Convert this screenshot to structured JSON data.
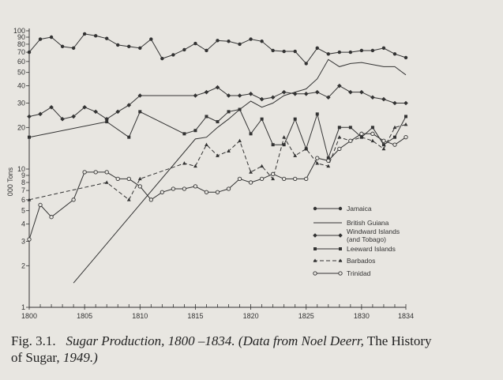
{
  "caption": {
    "fig_label": "Fig. 3.1.",
    "part1": "Sugar Production, 1800 –1834. (Data from Noel Deerr,",
    "part2": " The History",
    "part3": "of Sugar,",
    "part4": " 1949.)"
  },
  "chart_data": {
    "type": "line",
    "title": "",
    "xlabel": "",
    "ylabel": "000 Tons",
    "yscale": "log",
    "ylim": [
      1,
      100
    ],
    "xlim": [
      1800,
      1834
    ],
    "x_ticks": [
      1800,
      1805,
      1810,
      1815,
      1820,
      1825,
      1830,
      1834
    ],
    "y_ticks": [
      {
        "value": 1,
        "label": "1"
      },
      {
        "value": 2,
        "label": "2"
      },
      {
        "value": 3,
        "label": "3"
      },
      {
        "value": 4,
        "label": "4"
      },
      {
        "value": 5,
        "label": "5"
      },
      {
        "value": 6,
        "label": "6"
      },
      {
        "value": 7,
        "label": "7"
      },
      {
        "value": 8,
        "label": "8"
      },
      {
        "value": 9,
        "label": "9"
      },
      {
        "value": 10,
        "label": "10"
      },
      {
        "value": 20,
        "label": "20"
      },
      {
        "value": 30,
        "label": "30"
      },
      {
        "value": 40,
        "label": "40"
      },
      {
        "value": 50,
        "label": "50"
      },
      {
        "value": 60,
        "label": "60"
      },
      {
        "value": 70,
        "label": "70"
      },
      {
        "value": 80,
        "label": "80"
      },
      {
        "value": 90,
        "label": "90"
      },
      {
        "value": 100,
        "label": "100"
      }
    ],
    "grid": false,
    "legend_position": "right",
    "series": [
      {
        "name": "Jamaica",
        "marker": "dot",
        "dash": "solid",
        "color": "#333333",
        "x": [
          1800,
          1801,
          1802,
          1803,
          1804,
          1805,
          1806,
          1807,
          1808,
          1809,
          1810,
          1811,
          1812,
          1813,
          1814,
          1815,
          1816,
          1817,
          1818,
          1819,
          1820,
          1821,
          1822,
          1823,
          1824,
          1825,
          1826,
          1827,
          1828,
          1829,
          1830,
          1831,
          1832,
          1833,
          1834
        ],
        "y": [
          70,
          87,
          90,
          77,
          75,
          95,
          92,
          88,
          79,
          77,
          75,
          87,
          63,
          67,
          73,
          81,
          72,
          85,
          84,
          80,
          87,
          84,
          72,
          71,
          71,
          58,
          75,
          68,
          70,
          70,
          72,
          72,
          75,
          68,
          64
        ]
      },
      {
        "name": "British Guiana",
        "marker": "none",
        "dash": "solid",
        "color": "#333333",
        "x": [
          1804,
          1815,
          1816,
          1817,
          1818,
          1819,
          1820,
          1821,
          1822,
          1823,
          1824,
          1825,
          1826,
          1827,
          1828,
          1829,
          1830,
          1831,
          1832,
          1833,
          1834
        ],
        "y": [
          1.5,
          16.5,
          17,
          20,
          23,
          27,
          31,
          28,
          30,
          34,
          36,
          38,
          45,
          62,
          55,
          58,
          59,
          57,
          55,
          55,
          48
        ]
      },
      {
        "name": "Windward Islands (and Tobago)",
        "marker": "diamond",
        "dash": "solid",
        "color": "#333333",
        "x": [
          1800,
          1801,
          1802,
          1803,
          1804,
          1805,
          1806,
          1807,
          1808,
          1809,
          1810,
          1815,
          1816,
          1817,
          1818,
          1819,
          1820,
          1821,
          1822,
          1823,
          1824,
          1825,
          1826,
          1827,
          1828,
          1829,
          1830,
          1831,
          1832,
          1833,
          1834
        ],
        "y": [
          24,
          25,
          28,
          23,
          24,
          28,
          26,
          23,
          26,
          29,
          34,
          34,
          36,
          39,
          34,
          34,
          35,
          32,
          33,
          36,
          35,
          35,
          36,
          33,
          40,
          36,
          36,
          33,
          32,
          30,
          30
        ]
      },
      {
        "name": "Leeward Islands",
        "marker": "square",
        "dash": "solid",
        "color": "#333333",
        "x": [
          1800,
          1807,
          1809,
          1810,
          1814,
          1815,
          1816,
          1817,
          1818,
          1819,
          1820,
          1821,
          1822,
          1823,
          1824,
          1825,
          1826,
          1827,
          1828,
          1829,
          1830,
          1831,
          1832,
          1833,
          1834
        ],
        "y": [
          17,
          22,
          17,
          26,
          18,
          19,
          24,
          22,
          26,
          27,
          18,
          23,
          15,
          15,
          23,
          14,
          25,
          12,
          20,
          20,
          17,
          20,
          15,
          17,
          24
        ]
      },
      {
        "name": "Barbados",
        "marker": "triangle",
        "dash": "dashed",
        "color": "#333333",
        "x": [
          1800,
          1807,
          1809,
          1810,
          1814,
          1815,
          1816,
          1817,
          1818,
          1819,
          1820,
          1821,
          1822,
          1823,
          1824,
          1825,
          1826,
          1827,
          1828,
          1829,
          1830,
          1831,
          1832,
          1833,
          1834
        ],
        "y": [
          6,
          8,
          6,
          8.5,
          11,
          10.5,
          15,
          12.5,
          13.5,
          16,
          9.5,
          10.5,
          8.5,
          17,
          12.5,
          14,
          11,
          10.5,
          17,
          16,
          17,
          16,
          14,
          20,
          21
        ]
      },
      {
        "name": "Trinidad",
        "marker": "circle",
        "dash": "solid",
        "color": "#333333",
        "x": [
          1800,
          1801,
          1802,
          1804,
          1805,
          1806,
          1807,
          1808,
          1809,
          1810,
          1811,
          1812,
          1813,
          1814,
          1815,
          1816,
          1817,
          1818,
          1819,
          1820,
          1821,
          1822,
          1823,
          1824,
          1825,
          1826,
          1827,
          1828,
          1829,
          1830,
          1831,
          1832,
          1833,
          1834
        ],
        "y": [
          3.1,
          5.5,
          4.5,
          6,
          9.5,
          9.5,
          9.5,
          8.5,
          8.5,
          7.5,
          6,
          6.8,
          7.2,
          7.2,
          7.5,
          6.8,
          6.8,
          7.2,
          8.5,
          8,
          8.5,
          9.2,
          8.5,
          8.5,
          8.5,
          12,
          11.5,
          14,
          16,
          18,
          18,
          16,
          15,
          17
        ]
      }
    ]
  }
}
